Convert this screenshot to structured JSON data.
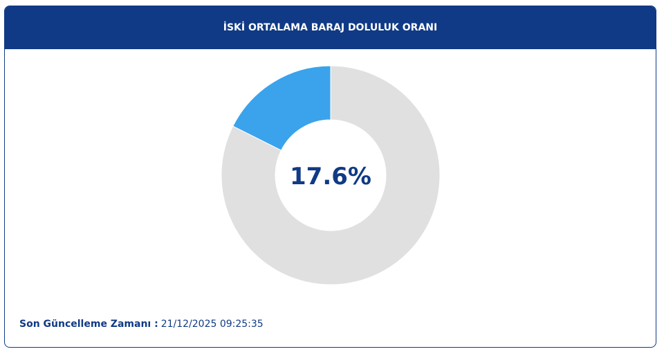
{
  "chart_data": {
    "type": "donut",
    "title": "İSKİ ORTALAMA BARAJ DOLULUK ORANI",
    "values": [
      17.6,
      82.4
    ],
    "value_labels": [
      "17.6%",
      null
    ],
    "colors": [
      "#3aa3ec",
      "#e0e0e0"
    ],
    "update_label": "Son Güncelleme Zamanı :",
    "update_time": "21/12/2025 09:25:35"
  }
}
